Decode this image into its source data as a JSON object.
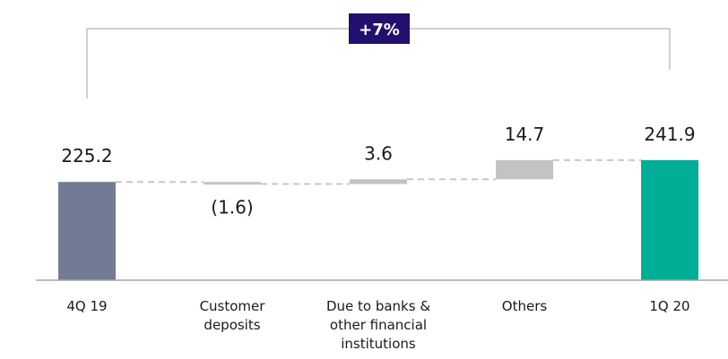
{
  "chart_data": {
    "type": "bar",
    "subtype": "waterfall",
    "categories": [
      [
        "4Q 19"
      ],
      [
        "Customer",
        "deposits"
      ],
      [
        "Due to banks &",
        "other financial",
        "institutions"
      ],
      [
        "Others"
      ],
      [
        "1Q 20"
      ]
    ],
    "values": [
      225.2,
      -1.6,
      3.6,
      14.7,
      241.9
    ],
    "bar_kinds": [
      "total",
      "delta",
      "delta",
      "delta",
      "total"
    ],
    "value_labels": [
      "225.2",
      "(1.6)",
      "3.6",
      "14.7",
      "241.9"
    ],
    "change_badge": "+7%",
    "colors": {
      "start_total": "#717c94",
      "delta": "#c3c3c3",
      "end_total": "#00ad96",
      "connector": "#c8c8c8",
      "bracket": "#bfbfbf",
      "badge_bg": "#22106e",
      "baseline": "#a6a6a6"
    }
  }
}
